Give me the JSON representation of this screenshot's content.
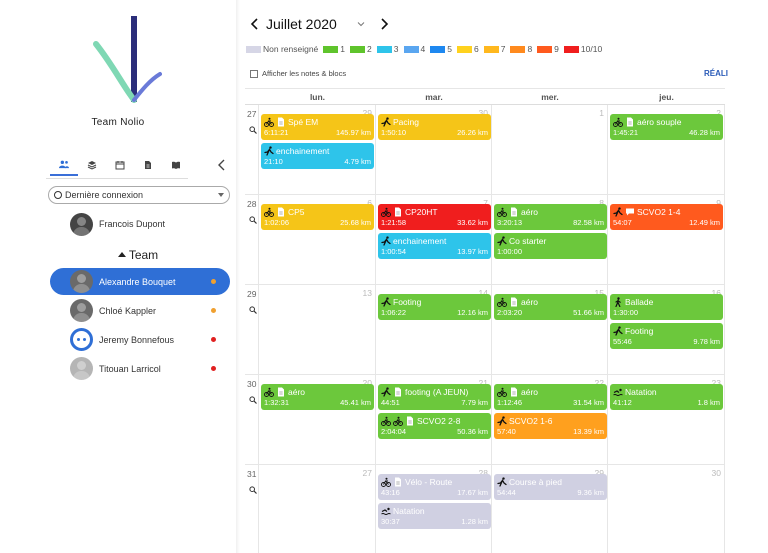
{
  "sidebar": {
    "team_name": "Team Nolio",
    "dropdown": "Dernière connexion",
    "coach": "Francois Dupont",
    "group": "Team",
    "athletes": [
      {
        "name": "Alexandre Bouquet",
        "status": "#f0a030",
        "selected": true
      },
      {
        "name": "Chloé Kappler",
        "status": "#f0a030",
        "selected": false
      },
      {
        "name": "Jeremy Bonnefous",
        "status": "#e02020",
        "selected": false
      },
      {
        "name": "Titouan Larricol",
        "status": "#e02020",
        "selected": false
      }
    ]
  },
  "header": {
    "month": "Juillet 2020",
    "notes_label": "Afficher les notes & blocs",
    "reali_label": "RÉALI"
  },
  "legend": [
    {
      "label": "Non renseigné",
      "color": "#d6d6e6"
    },
    {
      "label": "1",
      "color": "#5fc42c"
    },
    {
      "label": "2",
      "color": "#5fc42c"
    },
    {
      "label": "3",
      "color": "#2ec4ea"
    },
    {
      "label": "4",
      "color": "#5aa6f0"
    },
    {
      "label": "5",
      "color": "#1e88f0"
    },
    {
      "label": "6",
      "color": "#ffd21e"
    },
    {
      "label": "7",
      "color": "#ffb81e"
    },
    {
      "label": "8",
      "color": "#ff8a1e"
    },
    {
      "label": "9",
      "color": "#ff5a1e"
    },
    {
      "label": "10/10",
      "color": "#f01e1e"
    }
  ],
  "days": [
    "lun.",
    "mar.",
    "mer.",
    "jeu."
  ],
  "weeks": [
    {
      "num": "27",
      "dates": [
        "29",
        "30",
        "1",
        "2"
      ],
      "activities": [
        [
          {
            "title": "Spé EM",
            "time": "6:11:21",
            "dist": "145.97 km",
            "color": "#f5c518",
            "icons": [
              "bike",
              "doc"
            ]
          },
          {
            "title": "enchainement",
            "time": "21:10",
            "dist": "4.79 km",
            "color": "#2ec4ea",
            "icons": [
              "run"
            ]
          }
        ],
        [
          {
            "title": "Pacing",
            "time": "1:50:10",
            "dist": "26.26 km",
            "color": "#f5c518",
            "icons": [
              "run"
            ]
          }
        ],
        [],
        [
          {
            "title": "aéro souple",
            "time": "1:45:21",
            "dist": "46.28 km",
            "color": "#6cc83c",
            "icons": [
              "bike",
              "doc"
            ]
          }
        ]
      ]
    },
    {
      "num": "28",
      "dates": [
        "6",
        "7",
        "8",
        "9"
      ],
      "activities": [
        [
          {
            "title": "CP5",
            "time": "1:02:06",
            "dist": "25.68 km",
            "color": "#f5c518",
            "icons": [
              "bike",
              "doc"
            ]
          }
        ],
        [
          {
            "title": "CP20HT",
            "time": "1:21:58",
            "dist": "33.62 km",
            "color": "#f01e1e",
            "icons": [
              "bike",
              "doc"
            ]
          },
          {
            "title": "enchainement",
            "time": "1:00:54",
            "dist": "13.97 km",
            "color": "#2ec4ea",
            "icons": [
              "run"
            ]
          }
        ],
        [
          {
            "title": "aéro",
            "time": "3:20:13",
            "dist": "82.58 km",
            "color": "#6cc83c",
            "icons": [
              "bike",
              "doc"
            ]
          },
          {
            "title": "Co starter",
            "time": "1:00:00",
            "dist": "",
            "color": "#6cc83c",
            "icons": [
              "run"
            ]
          }
        ],
        [
          {
            "title": "SCVO2 1-4",
            "time": "54:07",
            "dist": "12.49 km",
            "color": "#ff5a1e",
            "icons": [
              "run",
              "chat"
            ]
          }
        ]
      ]
    },
    {
      "num": "29",
      "dates": [
        "13",
        "14",
        "15",
        "16"
      ],
      "activities": [
        [],
        [
          {
            "title": "Footing",
            "time": "1:06:22",
            "dist": "12.16 km",
            "color": "#6cc83c",
            "icons": [
              "run"
            ]
          }
        ],
        [
          {
            "title": "aéro",
            "time": "2:03:20",
            "dist": "51.66 km",
            "color": "#6cc83c",
            "icons": [
              "bike",
              "doc"
            ]
          }
        ],
        [
          {
            "title": "Ballade",
            "time": "1:30:00",
            "dist": "",
            "color": "#6cc83c",
            "icons": [
              "walk"
            ]
          },
          {
            "title": "Footing",
            "time": "55:46",
            "dist": "9.78 km",
            "color": "#6cc83c",
            "icons": [
              "run"
            ]
          }
        ]
      ]
    },
    {
      "num": "30",
      "dates": [
        "20",
        "21",
        "22",
        "23"
      ],
      "activities": [
        [
          {
            "title": "aéro",
            "time": "1:32:31",
            "dist": "45.41 km",
            "color": "#6cc83c",
            "icons": [
              "bike",
              "doc"
            ]
          }
        ],
        [
          {
            "title": "footing (A JEUN)",
            "time": "44:51",
            "dist": "7.79 km",
            "color": "#6cc83c",
            "icons": [
              "run",
              "doc"
            ]
          },
          {
            "title": "SCVO2 2-8",
            "time": "2:04:04",
            "dist": "50.36 km",
            "color": "#6cc83c",
            "icons": [
              "bike",
              "bike",
              "doc"
            ]
          }
        ],
        [
          {
            "title": "aéro",
            "time": "1:12:46",
            "dist": "31.54 km",
            "color": "#6cc83c",
            "icons": [
              "bike",
              "doc"
            ]
          },
          {
            "title": "SCVO2 1-6",
            "time": "57:40",
            "dist": "13.39 km",
            "color": "#ffa01e",
            "icons": [
              "run"
            ]
          }
        ],
        [
          {
            "title": "Natation",
            "time": "41:12",
            "dist": "1.8 km",
            "color": "#6cc83c",
            "icons": [
              "swim"
            ]
          }
        ]
      ]
    },
    {
      "num": "31",
      "dates": [
        "27",
        "28",
        "29",
        "30"
      ],
      "activities": [
        [],
        [
          {
            "title": "Vélo - Route",
            "time": "43:16",
            "dist": "17.67 km",
            "color": "#d0d0e2",
            "icons": [
              "bike",
              "doc"
            ]
          },
          {
            "title": "Natation",
            "time": "30:37",
            "dist": "1.28 km",
            "color": "#d0d0e2",
            "icons": [
              "swim"
            ]
          }
        ],
        [
          {
            "title": "Course à pied",
            "time": "54:44",
            "dist": "9.36 km",
            "color": "#d0d0e2",
            "icons": [
              "run"
            ]
          }
        ],
        []
      ]
    }
  ]
}
